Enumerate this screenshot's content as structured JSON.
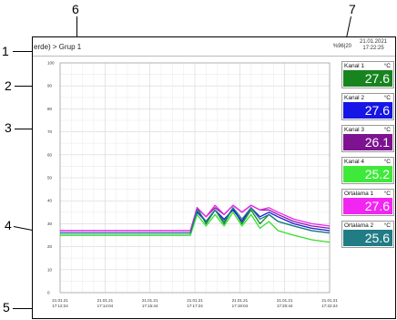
{
  "callouts": [
    "1",
    "2",
    "3",
    "4",
    "5",
    "6",
    "7"
  ],
  "header": {
    "breadcrumb": "erde) > Grup 1",
    "battery": "%96|20",
    "date": "21.01.2021",
    "time": "17:22:25"
  },
  "chart_data": {
    "type": "line",
    "y_ticks": [
      "0",
      "10",
      "20",
      "30",
      "40",
      "50",
      "60",
      "70",
      "80",
      "90",
      "100"
    ],
    "ylim": [
      0,
      100
    ],
    "x_ticks": [
      {
        "date": "21.01.21",
        "time": "17:12:24"
      },
      {
        "date": "21.01.21",
        "time": "17:14:04"
      },
      {
        "date": "21.01.21",
        "time": "17:15:44"
      },
      {
        "date": "21.01.21",
        "time": "17:17:24"
      },
      {
        "date": "21.01.21",
        "time": "17:19:04"
      },
      {
        "date": "21.01.21",
        "time": "17:20:44"
      },
      {
        "date": "21.01.21",
        "time": "17:22:24"
      }
    ],
    "x": [
      0,
      2.9,
      3.05,
      3.25,
      3.45,
      3.65,
      3.85,
      4.05,
      4.25,
      4.45,
      4.65,
      4.85,
      5.2,
      5.6,
      6.0
    ],
    "grid": true,
    "series": [
      {
        "name": "Kanal 1",
        "color": "#0b8a1e",
        "values": [
          25,
          25,
          37,
          30,
          36,
          30,
          37,
          30,
          36,
          30,
          34,
          31,
          29,
          27,
          26
        ]
      },
      {
        "name": "Kanal 2",
        "color": "#1a16d8",
        "values": [
          26,
          26,
          35,
          31,
          36,
          32,
          36,
          31,
          37,
          33,
          35,
          33,
          30,
          28,
          27
        ]
      },
      {
        "name": "Kanal 3",
        "color": "#8a1ba4",
        "values": [
          27,
          27,
          37,
          33,
          37,
          34,
          38,
          35,
          38,
          36,
          36,
          34,
          31,
          29,
          28
        ]
      },
      {
        "name": "Kanal 4",
        "color": "#32e02c",
        "values": [
          25,
          25,
          34,
          29,
          34,
          29,
          35,
          29,
          34,
          28,
          31,
          27,
          25,
          23,
          22
        ]
      },
      {
        "name": "Ortalama 1",
        "color": "#ee22ee",
        "values": [
          27,
          27,
          37,
          33,
          38,
          34,
          38,
          35,
          38,
          36,
          37,
          35,
          32,
          30,
          29
        ]
      },
      {
        "name": "Ortalama 2",
        "color": "#1a7a86",
        "values": [
          26,
          26,
          36,
          31,
          36,
          31,
          37,
          32,
          37,
          32,
          34,
          31,
          29,
          27,
          26
        ]
      }
    ]
  },
  "channels": [
    {
      "name": "Kanal 1",
      "unit": "°C",
      "value": "27.6",
      "color": "#17841f"
    },
    {
      "name": "Kanal 2",
      "unit": "°C",
      "value": "27.6",
      "color": "#1616e6"
    },
    {
      "name": "Kanal 3",
      "unit": "°C",
      "value": "26.1",
      "color": "#7d1390"
    },
    {
      "name": "Kanal 4",
      "unit": "°C",
      "value": "25.2",
      "color": "#3fe93a"
    },
    {
      "name": "Ortalama 1",
      "unit": "°C",
      "value": "27.6",
      "color": "#f226f2"
    },
    {
      "name": "Ortalama 2",
      "unit": "°C",
      "value": "25.6",
      "color": "#217c85"
    }
  ]
}
